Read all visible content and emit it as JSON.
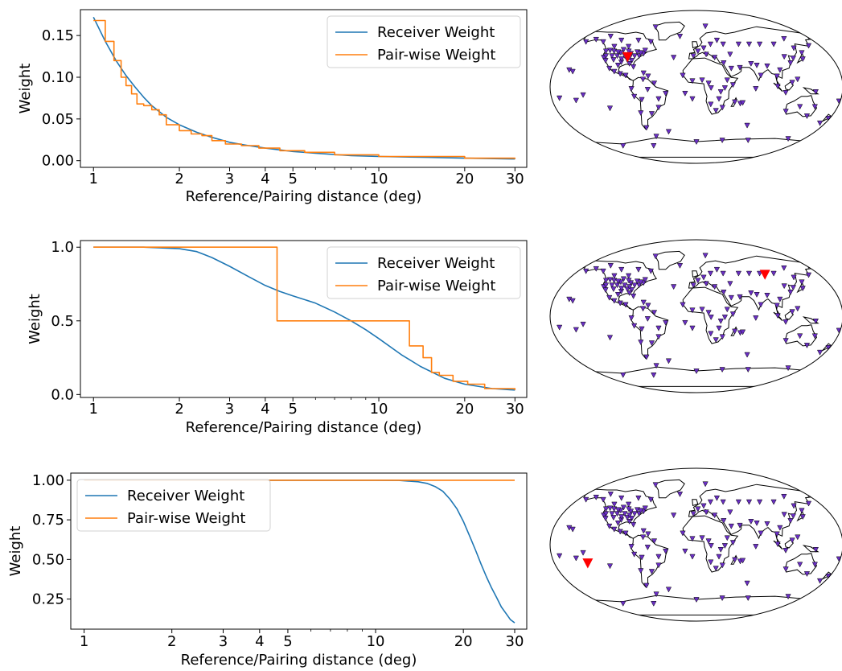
{
  "colors": {
    "receiver": "#1f77b4",
    "pairwise": "#ff7f0e",
    "station_fill": "#6a2fc4",
    "reference_station": "#ff0000",
    "coast": "#000000"
  },
  "chart_data": [
    {
      "type": "line",
      "xscale": "log",
      "xlim": [
        0.9,
        33
      ],
      "ylim": [
        -0.008,
        0.181
      ],
      "xticks": [
        1,
        2,
        3,
        4,
        5,
        10,
        20,
        30
      ],
      "xticklabels": [
        "1",
        "2",
        "3",
        "4",
        "5",
        "10",
        "20",
        "30"
      ],
      "yticks": [
        0.0,
        0.05,
        0.1,
        0.15
      ],
      "yticklabels": [
        "0.00",
        "0.05",
        "0.10",
        "0.15"
      ],
      "xlabel": "Reference/Pairing distance (deg)",
      "ylabel": "Weight",
      "legend": "top-right",
      "series": [
        {
          "name": "Receiver Weight",
          "color": "#1f77b4",
          "x": [
            1,
            1.1,
            1.2,
            1.3,
            1.4,
            1.5,
            1.6,
            1.8,
            2,
            2.3,
            2.6,
            3,
            3.5,
            4,
            5,
            6,
            8,
            10,
            15,
            20,
            30
          ],
          "y": [
            0.172,
            0.143,
            0.12,
            0.102,
            0.088,
            0.076,
            0.066,
            0.052,
            0.043,
            0.034,
            0.028,
            0.022,
            0.018,
            0.015,
            0.011,
            0.009,
            0.006,
            0.005,
            0.004,
            0.003,
            0.002
          ]
        },
        {
          "name": "Pair-wise Weight",
          "color": "#ff7f0e",
          "step": true,
          "x": [
            1,
            1.1,
            1.18,
            1.25,
            1.3,
            1.36,
            1.42,
            1.5,
            1.6,
            1.7,
            1.8,
            2.0,
            2.2,
            2.4,
            2.6,
            2.9,
            3.3,
            3.8,
            4.5,
            5.5,
            7,
            10,
            20,
            30
          ],
          "y": [
            0.168,
            0.143,
            0.12,
            0.1,
            0.09,
            0.08,
            0.068,
            0.066,
            0.061,
            0.055,
            0.043,
            0.036,
            0.032,
            0.03,
            0.024,
            0.02,
            0.018,
            0.015,
            0.012,
            0.01,
            0.007,
            0.005,
            0.003,
            0.002
          ]
        }
      ]
    },
    {
      "type": "line",
      "xscale": "log",
      "xlim": [
        0.9,
        33
      ],
      "ylim": [
        -0.02,
        1.045
      ],
      "xticks": [
        1,
        2,
        3,
        4,
        5,
        10,
        20,
        30
      ],
      "xticklabels": [
        "1",
        "2",
        "3",
        "4",
        "5",
        "10",
        "20",
        "30"
      ],
      "yticks": [
        0.0,
        0.5,
        1.0
      ],
      "yticklabels": [
        "0.0",
        "0.5",
        "1.0"
      ],
      "xlabel": "Reference/Pairing distance (deg)",
      "ylabel": "Weight",
      "legend": "top-right",
      "series": [
        {
          "name": "Receiver Weight",
          "color": "#1f77b4",
          "x": [
            1,
            1.5,
            2,
            2.3,
            2.6,
            3,
            3.5,
            4,
            4.5,
            5,
            6,
            7,
            8,
            9,
            10,
            12,
            14,
            17,
            20,
            25,
            30
          ],
          "y": [
            1.0,
            1.0,
            0.99,
            0.97,
            0.93,
            0.87,
            0.8,
            0.74,
            0.7,
            0.67,
            0.62,
            0.56,
            0.5,
            0.44,
            0.38,
            0.27,
            0.19,
            0.11,
            0.07,
            0.04,
            0.03
          ]
        },
        {
          "name": "Pair-wise Weight",
          "color": "#ff7f0e",
          "step": true,
          "x": [
            1,
            4.4,
            12.8,
            14.3,
            15.3,
            16.3,
            18.2,
            20.5,
            23.5,
            30
          ],
          "y": [
            1.0,
            0.5,
            0.33,
            0.25,
            0.15,
            0.13,
            0.09,
            0.07,
            0.04,
            0.03
          ]
        }
      ]
    },
    {
      "type": "line",
      "xscale": "log",
      "xlim": [
        0.9,
        33
      ],
      "ylim": [
        0.06,
        1.045
      ],
      "xticks": [
        1,
        2,
        3,
        4,
        5,
        10,
        20,
        30
      ],
      "xticklabels": [
        "1",
        "2",
        "3",
        "4",
        "5",
        "10",
        "20",
        "30"
      ],
      "yticks": [
        0.25,
        0.5,
        0.75,
        1.0
      ],
      "yticklabels": [
        "0.25",
        "0.50",
        "0.75",
        "1.00"
      ],
      "xlabel": "Reference/Pairing distance (deg)",
      "ylabel": "Weight",
      "legend": "top-left",
      "series": [
        {
          "name": "Receiver Weight",
          "color": "#1f77b4",
          "x": [
            1,
            5,
            10,
            12,
            14,
            15,
            16,
            17,
            18,
            19,
            20,
            21,
            22,
            23,
            24,
            25,
            26,
            27,
            28,
            29,
            30
          ],
          "y": [
            1.0,
            1.0,
            1.0,
            0.999,
            0.99,
            0.98,
            0.96,
            0.93,
            0.88,
            0.82,
            0.74,
            0.65,
            0.56,
            0.47,
            0.39,
            0.32,
            0.26,
            0.2,
            0.16,
            0.12,
            0.1
          ]
        },
        {
          "name": "Pair-wise Weight",
          "color": "#ff7f0e",
          "x": [
            1,
            30
          ],
          "y": [
            1.0,
            1.0
          ]
        }
      ]
    }
  ],
  "maps": [
    {
      "projection": "robinson",
      "reference_station": {
        "lon": -91,
        "lat": 39
      }
    },
    {
      "projection": "robinson",
      "reference_station": {
        "lon": 97,
        "lat": 54
      }
    },
    {
      "projection": "robinson",
      "reference_station": {
        "lon": -137,
        "lat": -23
      }
    }
  ]
}
